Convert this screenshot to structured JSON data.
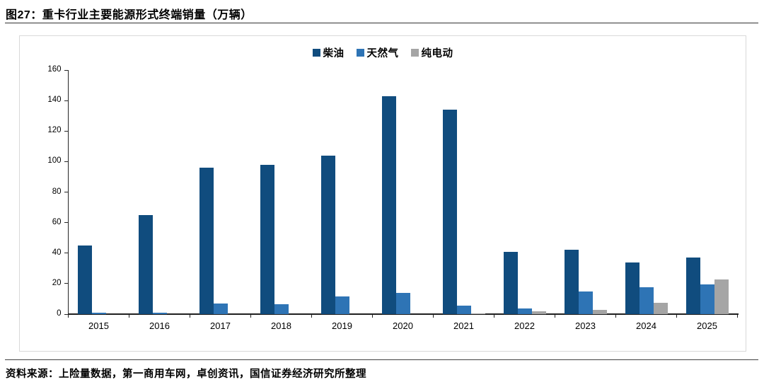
{
  "page": {
    "title": "图27：重卡行业主要能源形式终端销量（万辆）",
    "source": "资料来源：上险量数据，第一商用车网，卓创资讯，国信证券经济研究所整理"
  },
  "chart_data": {
    "type": "bar",
    "title": "图27：重卡行业主要能源形式终端销量（万辆）",
    "unit": "万辆",
    "categories": [
      "2015",
      "2016",
      "2017",
      "2018",
      "2019",
      "2020",
      "2021",
      "2022",
      "2023",
      "2024",
      "2025"
    ],
    "series": [
      {
        "name": "柴油",
        "key": "diesel",
        "color": "#104C7E",
        "values": [
          45,
          65,
          96,
          98,
          104,
          143,
          134,
          41,
          42,
          34,
          37
        ]
      },
      {
        "name": "天然气",
        "key": "natural-gas",
        "color": "#2E74B5",
        "values": [
          1,
          1,
          7,
          6.5,
          11.5,
          14,
          5.5,
          3.5,
          15,
          17.5,
          19.5
        ]
      },
      {
        "name": "纯电动",
        "key": "electric",
        "color": "#A5A5A5",
        "values": [
          0,
          0,
          0,
          0,
          0,
          0,
          0.5,
          2,
          3,
          7.5,
          22.5
        ]
      }
    ],
    "ylim": [
      0,
      160
    ],
    "yticks": [
      0,
      20,
      40,
      60,
      80,
      100,
      120,
      140,
      160
    ],
    "xlabel": "",
    "ylabel": "",
    "grid": false,
    "legend_position": "top"
  }
}
